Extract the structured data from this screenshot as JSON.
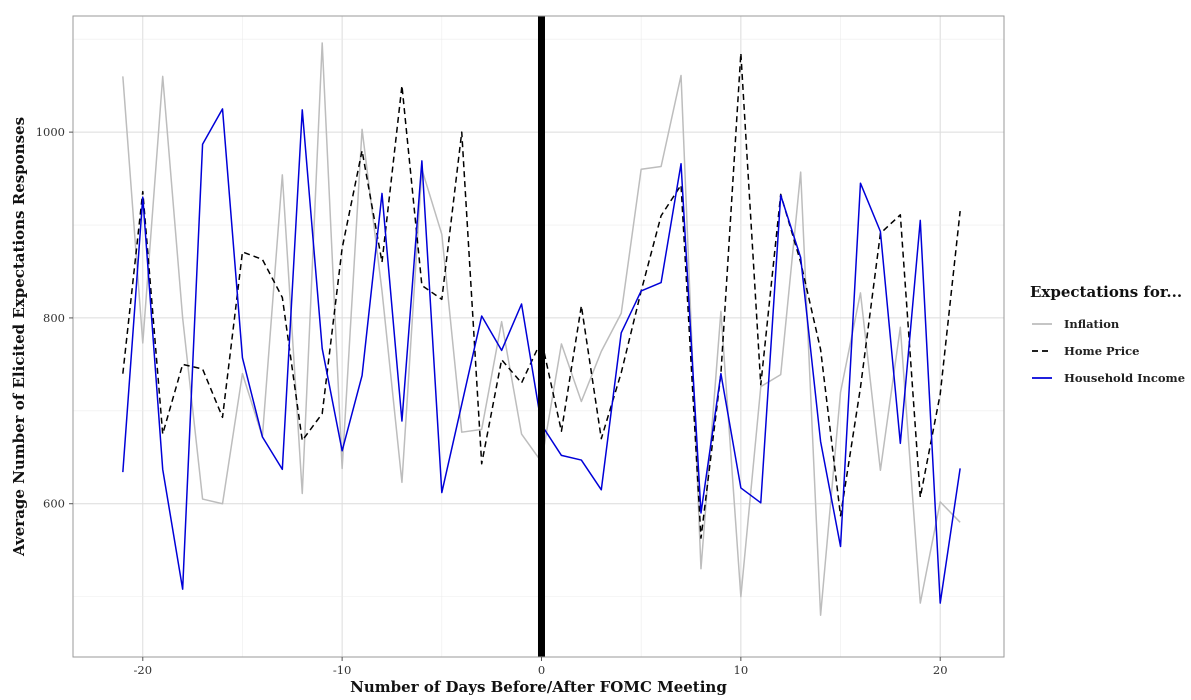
{
  "chart_data": {
    "type": "line",
    "title": "",
    "xlabel": "Number of Days Before/After FOMC Meeting",
    "ylabel": "Average Number of Elicited Expectations Responses",
    "xlim": [
      -23.5,
      23.2
    ],
    "ylim": [
      435,
      1125
    ],
    "xticks": [
      -20,
      -10,
      0,
      10,
      20
    ],
    "xtick_labels": [
      "-20",
      "-10",
      "0",
      "10",
      "20"
    ],
    "yticks": [
      600,
      800,
      1000
    ],
    "ytick_labels": [
      "600",
      "800",
      "1000"
    ],
    "grid": true,
    "vertical_reference_line": {
      "x": 0
    },
    "legend": {
      "title": "Expectations for...",
      "position": "right"
    },
    "x": [
      -21,
      -20,
      -19,
      -18,
      -17,
      -16,
      -15,
      -14,
      -13,
      -12,
      -11,
      -10,
      -9,
      -8,
      -7,
      -6,
      -5,
      -4,
      -3,
      -2,
      -1,
      0,
      1,
      2,
      3,
      4,
      5,
      6,
      7,
      8,
      9,
      10,
      11,
      12,
      13,
      14,
      15,
      16,
      17,
      18,
      19,
      20,
      21
    ],
    "series": [
      {
        "name": "Inflation",
        "color": "#bdbdbd",
        "dash": "solid",
        "values": [
          1060,
          773,
          1060,
          800,
          605,
          600,
          740,
          672,
          954,
          611,
          1096,
          638,
          1003,
          829,
          623,
          960,
          890,
          677,
          680,
          796,
          675,
          645,
          772,
          710,
          764,
          805,
          960,
          963,
          1061,
          530,
          807,
          500,
          726,
          739,
          957,
          480,
          720,
          827,
          636,
          790,
          493,
          602,
          580
        ]
      },
      {
        "name": "Home Price",
        "color": "#000000",
        "dash": "dashed",
        "values": [
          740,
          936,
          675,
          750,
          745,
          693,
          871,
          863,
          822,
          668,
          697,
          875,
          980,
          860,
          1050,
          835,
          820,
          1000,
          643,
          755,
          730,
          776,
          678,
          813,
          670,
          741,
          829,
          910,
          943,
          563,
          740,
          1085,
          728,
          933,
          860,
          766,
          587,
          725,
          891,
          911,
          607,
          718,
          915
        ]
      },
      {
        "name": "Household Income",
        "color": "#0000d8",
        "dash": "solid",
        "values": [
          634,
          930,
          637,
          508,
          987,
          1025,
          757,
          672,
          637,
          1024,
          767,
          657,
          738,
          934,
          689,
          969,
          612,
          707,
          802,
          765,
          815,
          685,
          652,
          647,
          615,
          784,
          829,
          838,
          966,
          590,
          740,
          617,
          601,
          932,
          865,
          667,
          554,
          945,
          893,
          665,
          905,
          493,
          638
        ]
      }
    ]
  }
}
